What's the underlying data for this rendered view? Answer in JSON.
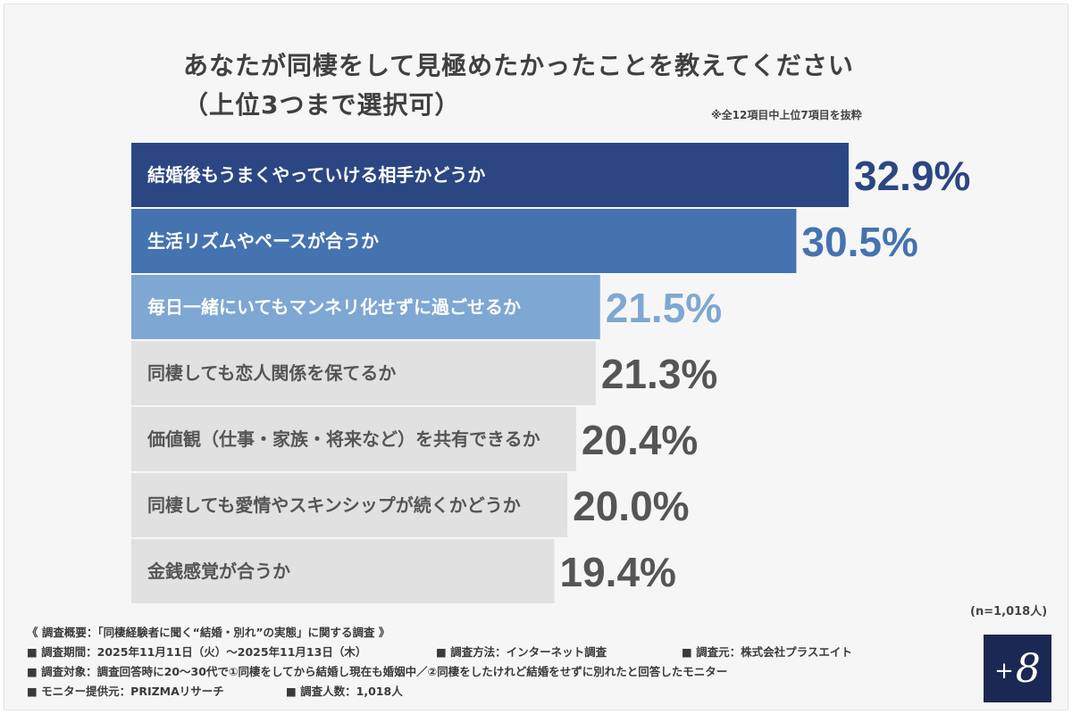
{
  "header": {
    "title": "あなたが同棲をして見極めたかったことを教えてください",
    "subtitle": "（上位3つまで選択可）",
    "note": "※全12項目中上位7項目を抜粋"
  },
  "chart_data": {
    "type": "bar",
    "orientation": "horizontal",
    "categories": [
      "結婚後もうまくやっていける相手かどうか",
      "生活リズムやペースが合うか",
      "毎日一緒にいてもマンネリ化せずに過ごせるか",
      "同棲しても恋人関係を保てるか",
      "価値観（仕事・家族・将来など）を共有できるか",
      "同棲しても愛情やスキンシップが続くかどうか",
      "金銭感覚が合うか"
    ],
    "values": [
      32.9,
      30.5,
      21.5,
      21.3,
      20.4,
      20.0,
      19.4
    ],
    "value_labels": [
      "32.9%",
      "30.5%",
      "21.5%",
      "21.3%",
      "20.4%",
      "20.0%",
      "19.4%"
    ],
    "unit": "%",
    "bar_colors": [
      "#2b4682",
      "#4473b0",
      "#7ea7d3",
      "#e1e1e1",
      "#e1e1e1",
      "#e1e1e1",
      "#e1e1e1"
    ],
    "label_colors": [
      "#ffffff",
      "#ffffff",
      "#ffffff",
      "#555555",
      "#555555",
      "#555555",
      "#555555"
    ],
    "value_colors": [
      "#2b4682",
      "#4473b0",
      "#7ea7d3",
      "#555555",
      "#555555",
      "#555555",
      "#555555"
    ]
  },
  "sample_note": "(n=1,018人)",
  "footer": {
    "overview": "《 調査概要：「同棲経験者に聞く“結婚・別れ”の実態」に関する調査 》",
    "period": "■ 調査期間：2025年11月11日（火）〜2025年11月13日（木）",
    "method": "■ 調査方法：インターネット調査",
    "organizer": "■ 調査元：株式会社プラスエイト",
    "target": "■ 調査対象：調査回答時に20〜30代で①同棲をしてから結婚し現在も婚姻中／②同棲をしたけれど結婚をせずに別れたと回答したモニター",
    "provider": "■ モニター提供元：PRIZMAリサーチ",
    "respondents": "■ 調査人数：1,018人"
  },
  "logo": {
    "plus": "+",
    "eight": "8"
  }
}
